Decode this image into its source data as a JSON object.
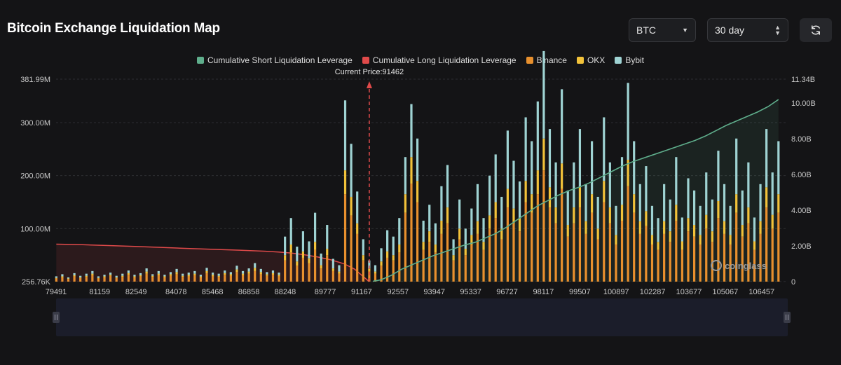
{
  "header": {
    "title": "Bitcoin Exchange Liquidation Map",
    "coin_select": "BTC",
    "range_select": "30 day"
  },
  "icons": {
    "caret": "chevron-down-icon",
    "updown": "up-down-arrows-icon",
    "refresh": "refresh-icon"
  },
  "watermark": "coinglass",
  "colors": {
    "background": "#141416",
    "short_line": "#5fae8c",
    "long_line": "#e04a4a",
    "binance": "#e8902e",
    "okx": "#f2c23a",
    "bybit": "#9fd3d3",
    "current_price": "#e04a4a"
  },
  "chart_data": {
    "type": "bar",
    "title": "Bitcoin Exchange Liquidation Map",
    "legend": [
      {
        "name": "Cumulative Short Liquidation Leverage",
        "color": "#5fae8c"
      },
      {
        "name": "Cumulative Long Liquidation Leverage",
        "color": "#e04a4a"
      },
      {
        "name": "Binance",
        "color": "#e8902e"
      },
      {
        "name": "OKX",
        "color": "#f2c23a"
      },
      {
        "name": "Bybit",
        "color": "#9fd3d3"
      }
    ],
    "legend_position": "top-center",
    "current_price_label": "Current Price:91462",
    "current_price": 91462,
    "x_ticks": [
      "79491",
      "81159",
      "82549",
      "84078",
      "85468",
      "86858",
      "88248",
      "89777",
      "91167",
      "92557",
      "93947",
      "95337",
      "96727",
      "98117",
      "99507",
      "100897",
      "102287",
      "103677",
      "105067",
      "106457"
    ],
    "x_range": [
      79491,
      107400
    ],
    "y_left_ticks": [
      "256.76K",
      "100.00M",
      "200.00M",
      "300.00M",
      "381.99M"
    ],
    "y_left_range": [
      0,
      381990000
    ],
    "y_right_ticks": [
      "0",
      "2.00B",
      "4.00B",
      "6.00B",
      "8.00B",
      "10.00B",
      "11.34B"
    ],
    "y_right_range": [
      0,
      11340000000
    ],
    "grid": true,
    "bars_x": [
      79500,
      79730,
      79960,
      80190,
      80420,
      80650,
      80880,
      81110,
      81340,
      81570,
      81800,
      82030,
      82260,
      82490,
      82720,
      82950,
      83180,
      83410,
      83640,
      83870,
      84100,
      84330,
      84560,
      84790,
      85020,
      85250,
      85480,
      85710,
      85940,
      86170,
      86400,
      86630,
      86860,
      87090,
      87320,
      87550,
      87780,
      88010,
      88240,
      88470,
      88700,
      88930,
      89160,
      89390,
      89620,
      89850,
      90080,
      90310,
      90540,
      90770,
      91000,
      91230,
      91460,
      91690,
      91920,
      92150,
      92380,
      92610,
      92840,
      93070,
      93300,
      93530,
      93760,
      93990,
      94220,
      94450,
      94680,
      94910,
      95140,
      95370,
      95600,
      95830,
      96060,
      96290,
      96520,
      96750,
      96980,
      97210,
      97440,
      97670,
      97900,
      98130,
      98360,
      98590,
      98820,
      99050,
      99280,
      99510,
      99740,
      99970,
      100200,
      100430,
      100660,
      100890,
      101120,
      101350,
      101580,
      101810,
      102040,
      102270,
      102500,
      102730,
      102960,
      103190,
      103420,
      103650,
      103880,
      104110,
      104340,
      104570,
      104800,
      105030,
      105260,
      105490,
      105720,
      105950,
      106180,
      106410,
      106640,
      106870,
      107100
    ],
    "binance_m": [
      6,
      8,
      5,
      10,
      7,
      9,
      12,
      6,
      8,
      11,
      7,
      9,
      13,
      8,
      10,
      15,
      9,
      12,
      8,
      11,
      14,
      9,
      10,
      12,
      8,
      16,
      10,
      9,
      13,
      11,
      18,
      12,
      15,
      20,
      14,
      11,
      13,
      10,
      40,
      55,
      30,
      45,
      35,
      60,
      25,
      50,
      20,
      15,
      165,
      125,
      90,
      40,
      20,
      15,
      30,
      45,
      40,
      55,
      130,
      185,
      150,
      60,
      75,
      55,
      90,
      110,
      40,
      80,
      50,
      70,
      90,
      60,
      100,
      120,
      80,
      140,
      110,
      95,
      150,
      130,
      165,
      210,
      140,
      110,
      175,
      85,
      110,
      140,
      90,
      130,
      80,
      150,
      110,
      70,
      115,
      180,
      130,
      90,
      105,
      70,
      60,
      90,
      75,
      115,
      60,
      95,
      85,
      70,
      100,
      75,
      120,
      90,
      70,
      130,
      85,
      110,
      60,
      90,
      140,
      100,
      130
    ],
    "okx_m": [
      1,
      2,
      1,
      2,
      1,
      2,
      3,
      1,
      2,
      2,
      1,
      2,
      3,
      2,
      2,
      4,
      2,
      3,
      2,
      3,
      4,
      2,
      3,
      3,
      2,
      4,
      3,
      2,
      3,
      3,
      5,
      3,
      4,
      6,
      4,
      3,
      3,
      3,
      10,
      15,
      8,
      12,
      9,
      15,
      6,
      12,
      5,
      4,
      45,
      35,
      20,
      10,
      5,
      4,
      8,
      12,
      10,
      15,
      35,
      50,
      40,
      15,
      20,
      15,
      25,
      30,
      10,
      20,
      12,
      18,
      24,
      15,
      25,
      30,
      20,
      35,
      28,
      24,
      40,
      35,
      45,
      60,
      38,
      30,
      48,
      22,
      30,
      38,
      24,
      35,
      20,
      40,
      30,
      18,
      30,
      50,
      35,
      24,
      28,
      18,
      15,
      24,
      20,
      30,
      16,
      25,
      22,
      18,
      26,
      20,
      32,
      24,
      18,
      35,
      22,
      30,
      16,
      24,
      38,
      26,
      35
    ],
    "bybit_m": [
      3,
      4,
      2,
      4,
      3,
      4,
      5,
      3,
      3,
      4,
      3,
      4,
      5,
      3,
      4,
      6,
      3,
      5,
      3,
      4,
      6,
      4,
      4,
      5,
      3,
      6,
      4,
      4,
      5,
      4,
      7,
      5,
      6,
      9,
      6,
      4,
      5,
      4,
      35,
      50,
      28,
      38,
      32,
      55,
      22,
      45,
      18,
      12,
      132,
      100,
      60,
      30,
      15,
      12,
      25,
      40,
      35,
      50,
      70,
      100,
      80,
      40,
      50,
      40,
      65,
      80,
      30,
      55,
      38,
      50,
      70,
      45,
      75,
      90,
      60,
      110,
      90,
      70,
      120,
      100,
      130,
      165,
      110,
      85,
      140,
      65,
      85,
      110,
      70,
      100,
      60,
      120,
      85,
      55,
      90,
      145,
      100,
      70,
      85,
      55,
      45,
      70,
      60,
      90,
      45,
      75,
      65,
      55,
      80,
      60,
      95,
      70,
      55,
      105,
      65,
      85,
      45,
      70,
      110,
      80,
      100
    ],
    "short_cum_x": [
      91600,
      91900,
      92300,
      92700,
      93100,
      93500,
      93900,
      94300,
      94700,
      95100,
      95500,
      95900,
      96300,
      96700,
      97100,
      97500,
      97900,
      98300,
      98700,
      99100,
      99500,
      99900,
      100300,
      100700,
      101100,
      101500,
      101900,
      102300,
      102700,
      103100,
      103500,
      103900,
      104300,
      104700,
      105100,
      105500,
      105900,
      106300,
      106700,
      107100
    ],
    "short_cum_b": [
      0.02,
      0.1,
      0.35,
      0.7,
      0.95,
      1.2,
      1.45,
      1.65,
      1.85,
      2.05,
      2.2,
      2.45,
      2.7,
      3.05,
      3.45,
      3.85,
      4.25,
      4.55,
      4.85,
      5.1,
      5.3,
      5.55,
      5.85,
      6.15,
      6.45,
      6.7,
      6.9,
      7.1,
      7.3,
      7.5,
      7.7,
      7.9,
      8.15,
      8.45,
      8.75,
      9.0,
      9.25,
      9.5,
      9.8,
      10.2
    ],
    "long_cum_x": [
      79500,
      80500,
      81500,
      82500,
      83500,
      84500,
      85500,
      86500,
      87500,
      88000,
      88500,
      89000,
      89500,
      90000,
      90500,
      90900,
      91100,
      91300,
      91460
    ],
    "long_cum_b": [
      2.1,
      2.07,
      2.02,
      1.97,
      1.92,
      1.86,
      1.81,
      1.76,
      1.7,
      1.66,
      1.6,
      1.5,
      1.38,
      1.22,
      1.0,
      0.7,
      0.45,
      0.2,
      0.0
    ]
  }
}
